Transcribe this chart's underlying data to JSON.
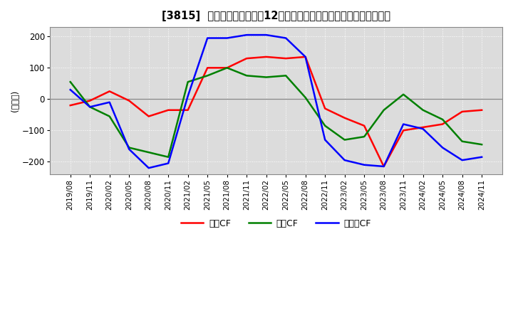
{
  "title": "[3815]  キャッシュフローの12か月移動合計の対前年同期増減額の推移",
  "ylabel": "(百万円)",
  "ylim": [
    -240,
    230
  ],
  "yticks": [
    -200,
    -100,
    0,
    100,
    200
  ],
  "legend_labels": [
    "営業CF",
    "投資CF",
    "フリーCF"
  ],
  "line_colors": [
    "#ff0000",
    "#008000",
    "#0000ff"
  ],
  "background_color": "#ffffff",
  "plot_bg_color": "#dcdcdc",
  "grid_color": "#ffffff",
  "dates": [
    "2019/08",
    "2019/11",
    "2020/02",
    "2020/05",
    "2020/08",
    "2020/11",
    "2021/02",
    "2021/05",
    "2021/08",
    "2021/11",
    "2022/02",
    "2022/05",
    "2022/08",
    "2022/11",
    "2023/02",
    "2023/05",
    "2023/08",
    "2023/11",
    "2024/02",
    "2024/05",
    "2024/08",
    "2024/11"
  ],
  "eigyo_cf": [
    -20,
    -5,
    25,
    -5,
    -55,
    -35,
    -35,
    100,
    100,
    130,
    135,
    130,
    135,
    -30,
    -60,
    -85,
    -215,
    -100,
    -90,
    -80,
    -40,
    -35
  ],
  "toshi_cf": [
    55,
    -25,
    -55,
    -155,
    -170,
    -185,
    55,
    75,
    100,
    75,
    70,
    75,
    5,
    -85,
    -130,
    -120,
    -35,
    15,
    -35,
    -65,
    -135,
    -145
  ],
  "free_cf": [
    30,
    -25,
    -10,
    -160,
    -220,
    -205,
    10,
    195,
    195,
    205,
    205,
    195,
    135,
    -130,
    -195,
    -210,
    -215,
    -80,
    -95,
    -155,
    -195,
    -185
  ]
}
